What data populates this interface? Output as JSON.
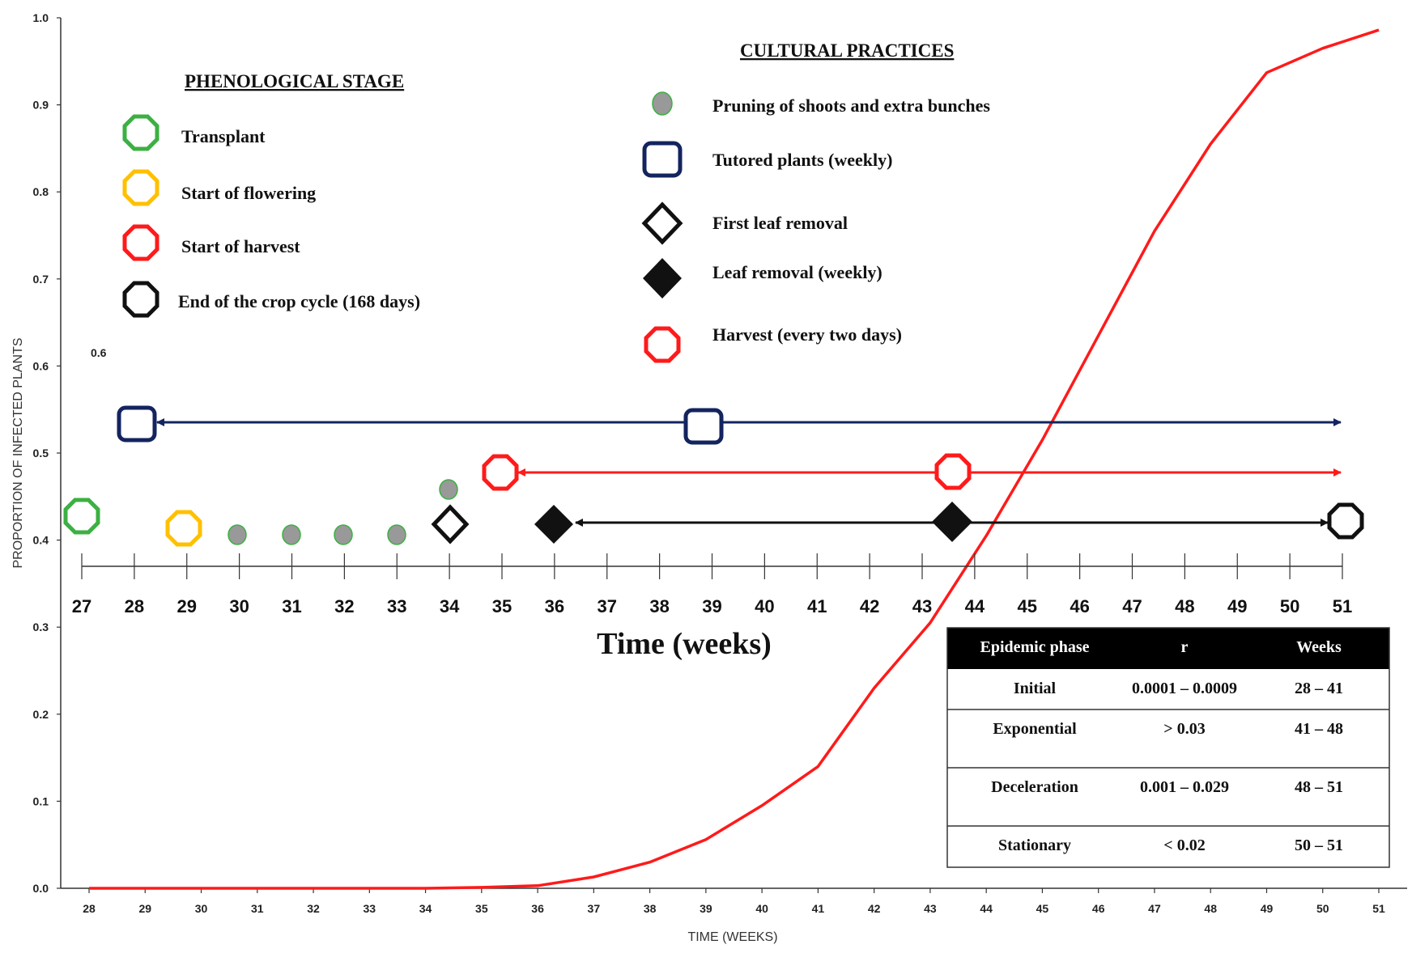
{
  "chart_data": {
    "type": "line",
    "title": "",
    "xlabel": "TIME (WEEKS)",
    "ylabel": "PROPORTION OF INFECTED PLANTS",
    "ylim": [
      0,
      1.0
    ],
    "xlim": [
      28,
      51
    ],
    "x_ticks": [
      28,
      29,
      30,
      31,
      32,
      33,
      34,
      35,
      36,
      37,
      38,
      39,
      40,
      41,
      42,
      43,
      44,
      45,
      46,
      47,
      48,
      49,
      50,
      51
    ],
    "y_ticks": [
      "0.0",
      "0.1",
      "0.2",
      "0.3",
      "0.4",
      "0.5",
      "0.6",
      "0.7",
      "0.8",
      "0.9",
      "1.0"
    ],
    "grid": false,
    "series": [
      {
        "color": "#ff1a1a",
        "x": [
          28,
          29,
          30,
          31,
          32,
          33,
          34,
          35,
          36,
          37,
          38,
          39,
          40,
          41,
          42,
          43,
          44,
          45,
          46,
          47,
          48,
          49,
          50,
          51
        ],
        "y": [
          0,
          0,
          0,
          0,
          0,
          0,
          0,
          0.001,
          0.003,
          0.013,
          0.03,
          0.056,
          0.095,
          0.14,
          0.23,
          0.305,
          0.405,
          0.515,
          0.635,
          0.755,
          0.855,
          0.937,
          0.965,
          0.986
        ]
      }
    ],
    "stray_label": "0.6"
  },
  "timeline": {
    "title": "Time (weeks)",
    "weeks": [
      "27",
      "28",
      "29",
      "30",
      "31",
      "32",
      "33",
      "34",
      "35",
      "36",
      "37",
      "38",
      "39",
      "40",
      "41",
      "42",
      "43",
      "44",
      "45",
      "46",
      "47",
      "48",
      "49",
      "50",
      "51"
    ]
  },
  "phenological": {
    "heading": "PHENOLOGICAL STAGE",
    "items": [
      {
        "label": "Transplant",
        "color": "#3cb043"
      },
      {
        "label": "Start of flowering",
        "color": "#ffc000"
      },
      {
        "label": "Start of harvest",
        "color": "#ff1a1a"
      },
      {
        "label": "End of the crop cycle (168 days)",
        "color": "#111111"
      }
    ]
  },
  "cultural": {
    "heading": "CULTURAL PRACTICES",
    "items": [
      {
        "label": "Pruning of shoots and extra bunches",
        "icon": "gray-dot-icon"
      },
      {
        "label": "Tutored plants (weekly)",
        "icon": "navy-square-icon"
      },
      {
        "label": "First leaf removal",
        "icon": "open-diamond-icon"
      },
      {
        "label": "Leaf removal (weekly)",
        "icon": "filled-diamond-icon"
      },
      {
        "label": "Harvest (every two days)",
        "icon": "red-octagon-icon"
      }
    ]
  },
  "colors": {
    "curve": "#ff1a1a",
    "navy": "#13245f",
    "green": "#3cb043",
    "yellow": "#ffc000",
    "red": "#ff1a1a",
    "gray": "#999999",
    "black": "#111111"
  },
  "table": {
    "headers": [
      "Epidemic phase",
      "r",
      "Weeks"
    ],
    "rows": [
      [
        "Initial",
        "0.0001 – 0.0009",
        "28 – 41"
      ],
      [
        "Exponential",
        "> 0.03",
        "41 – 48"
      ],
      [
        "Deceleration",
        "0.001 – 0.029",
        "48 – 51"
      ],
      [
        "Stationary",
        "< 0.02",
        "50 – 51"
      ]
    ]
  }
}
